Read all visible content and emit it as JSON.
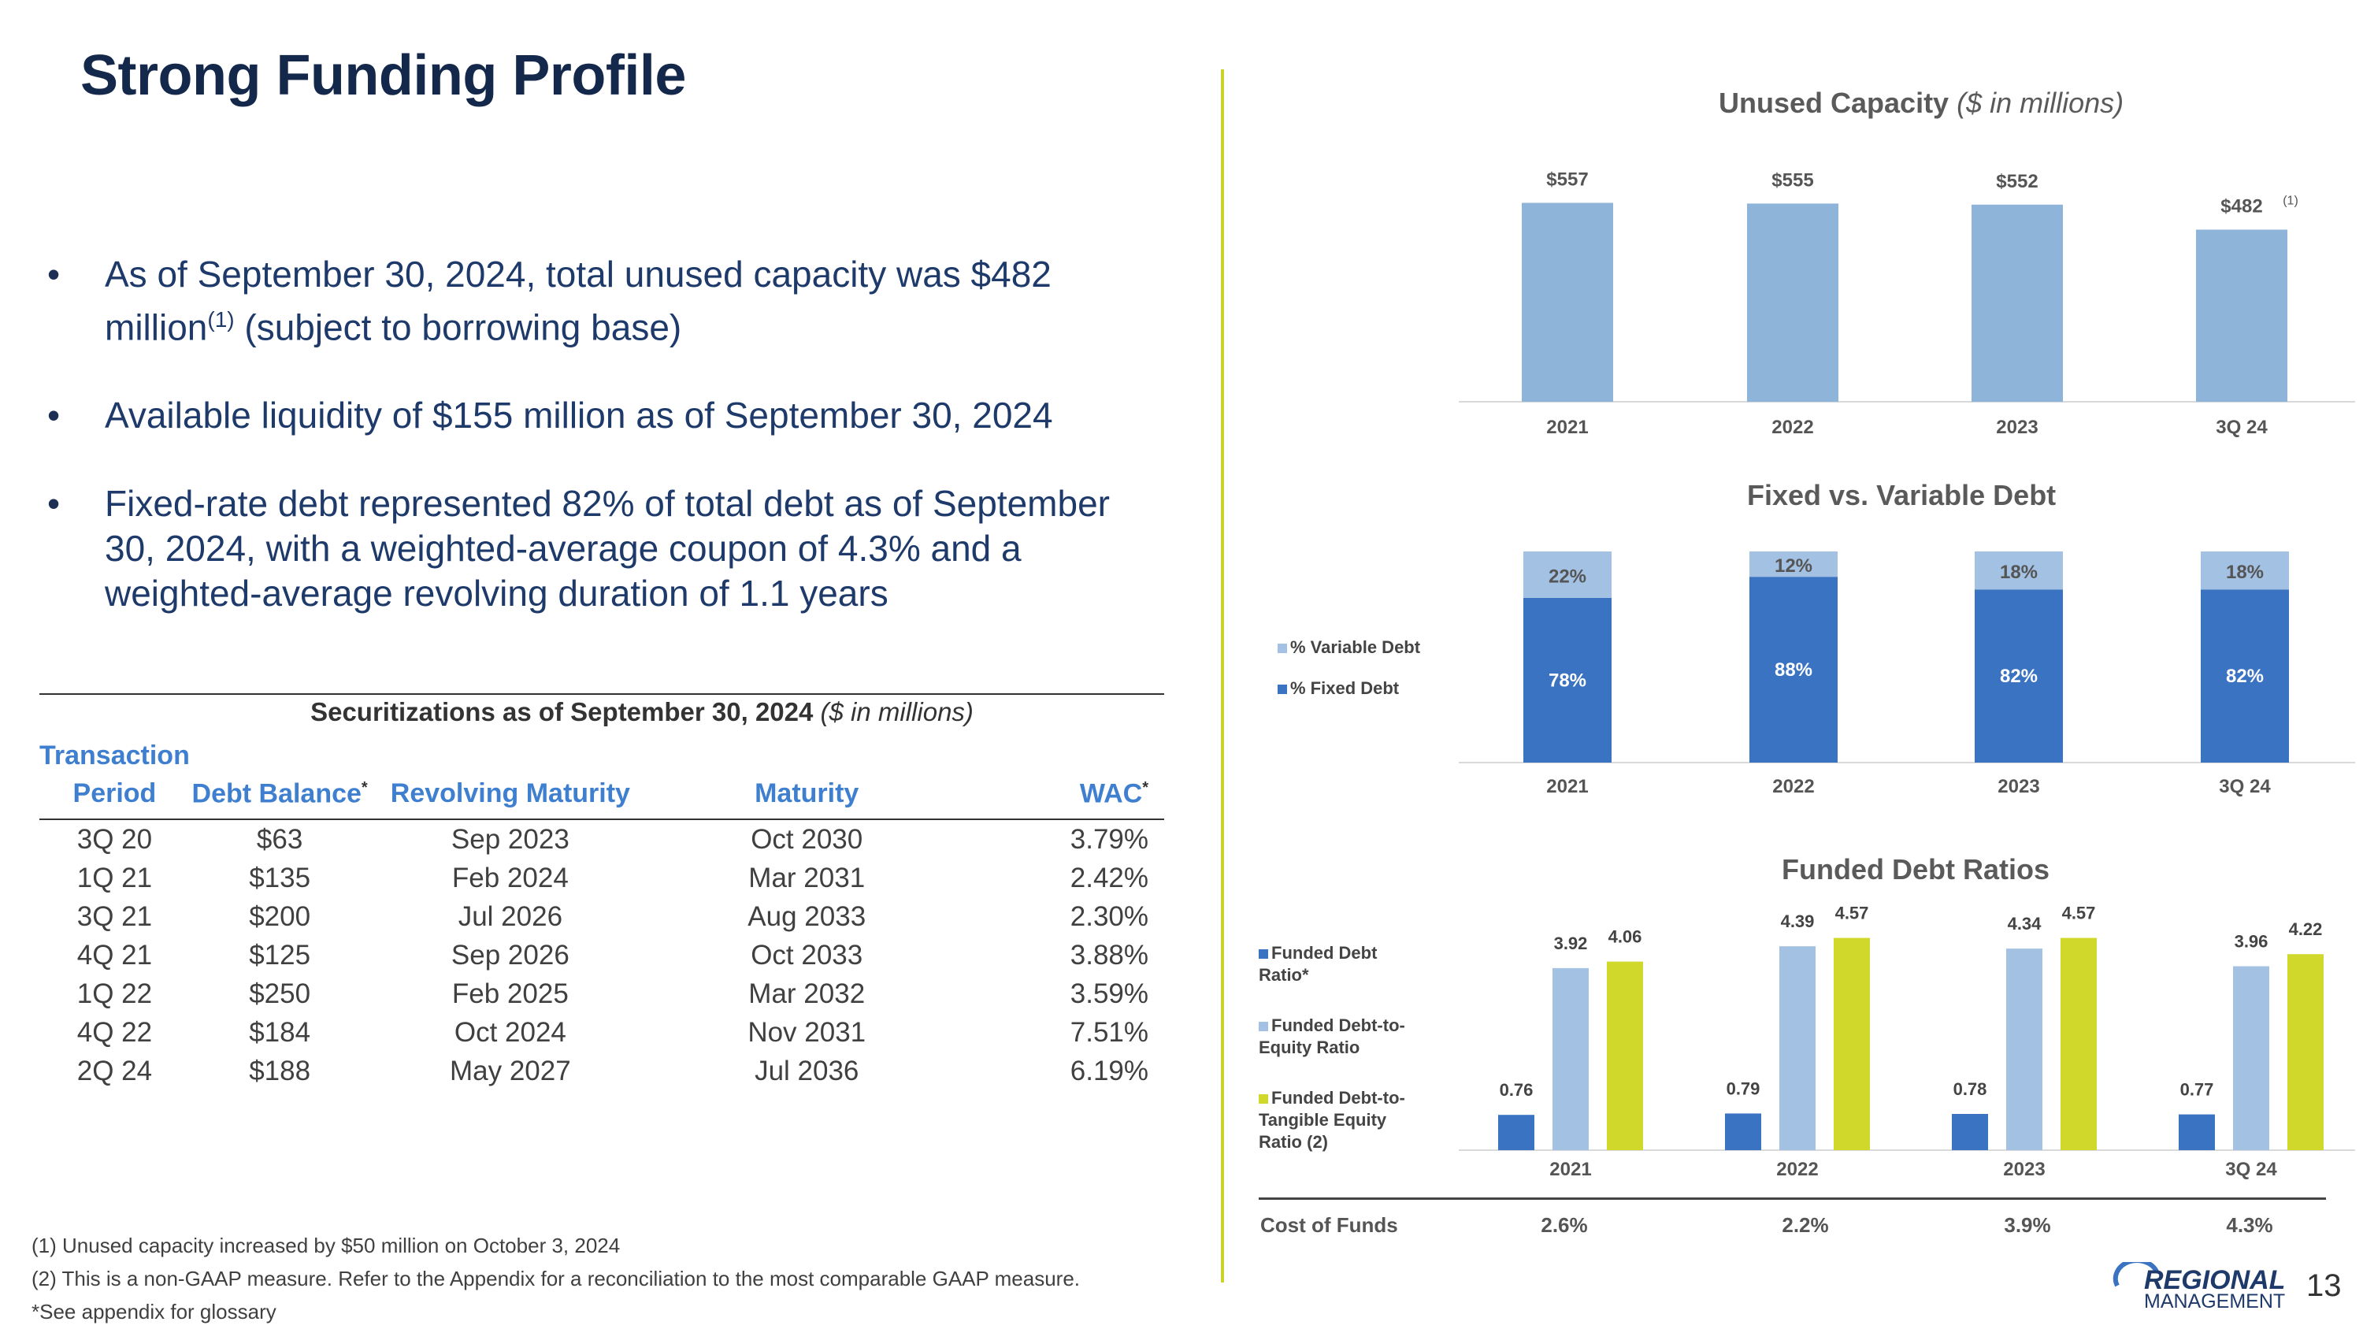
{
  "title": "Strong Funding Profile",
  "bullets": [
    {
      "text1": "As of September 30, 2024, total unused capacity was $482 million",
      "sup": "(1)",
      "text2": " (subject to borrowing base)"
    },
    {
      "text1": "Available liquidity of $155 million as of September 30, 2024",
      "sup": "",
      "text2": ""
    },
    {
      "text1": "Fixed-rate debt represented 82% of total debt as of September 30, 2024, with a weighted-average coupon of 4.3% and a weighted-average revolving duration of 1.1 years",
      "sup": "",
      "text2": ""
    }
  ],
  "securitizations": {
    "caption_bold": "Securitizations as of September 30, 2024",
    "caption_italic": "($ in millions)",
    "headers": {
      "period_line1": "Transaction",
      "period_line2": "Period",
      "debt": "Debt Balance",
      "debt_sup": "*",
      "revolving": "Revolving Maturity",
      "maturity": "Maturity",
      "wac": "WAC",
      "wac_sup": "*"
    },
    "rows": [
      [
        "3Q 20",
        "$63",
        "Sep 2023",
        "Oct 2030",
        "3.79%"
      ],
      [
        "1Q 21",
        "$135",
        "Feb 2024",
        "Mar 2031",
        "2.42%"
      ],
      [
        "3Q 21",
        "$200",
        "Jul 2026",
        "Aug 2033",
        "2.30%"
      ],
      [
        "4Q 21",
        "$125",
        "Sep 2026",
        "Oct 2033",
        "3.88%"
      ],
      [
        "1Q 22",
        "$250",
        "Feb 2025",
        "Mar 2032",
        "3.59%"
      ],
      [
        "4Q 22",
        "$184",
        "Oct 2024",
        "Nov 2031",
        "7.51%"
      ],
      [
        "2Q 24",
        "$188",
        "May 2027",
        "Jul 2036",
        "6.19%"
      ]
    ]
  },
  "footnotes": [
    "(1) Unused capacity increased by $50 million on October 3, 2024",
    "(2) This is a non-GAAP measure. Refer to the Appendix for a reconciliation to the most comparable GAAP measure.",
    "*See appendix for glossary"
  ],
  "colors": {
    "light_blue": "#8eb4d9",
    "mid_blue": "#a3c1e3",
    "dark_blue": "#3a73c2",
    "lime": "#cfd82b"
  },
  "chart_data": [
    {
      "type": "bar",
      "title": "Unused Capacity",
      "subtitle": "($ in millions)",
      "categories": [
        "2021",
        "2022",
        "2023",
        "3Q 24"
      ],
      "values": [
        557,
        555,
        552,
        482
      ],
      "labels": [
        "$557",
        "$555",
        "$552",
        "$482"
      ],
      "label_sup": [
        "",
        "",
        "",
        "(1)"
      ],
      "ylim": [
        0,
        600
      ]
    },
    {
      "type": "bar",
      "stacked": true,
      "title": "Fixed vs. Variable Debt",
      "categories": [
        "2021",
        "2022",
        "2023",
        "3Q 24"
      ],
      "series": [
        {
          "name": "% Fixed Debt",
          "values": [
            78,
            88,
            82,
            82
          ],
          "labels": [
            "78%",
            "88%",
            "82%",
            "82%"
          ]
        },
        {
          "name": "% Variable Debt",
          "values": [
            22,
            12,
            18,
            18
          ],
          "labels": [
            "22%",
            "12%",
            "18%",
            "18%"
          ]
        }
      ],
      "ylim": [
        0,
        100
      ]
    },
    {
      "type": "bar",
      "title": "Funded Debt Ratios",
      "categories": [
        "2021",
        "2022",
        "2023",
        "3Q 24"
      ],
      "series": [
        {
          "name": "Funded Debt Ratio*",
          "values": [
            0.76,
            0.79,
            0.78,
            0.77
          ]
        },
        {
          "name": "Funded Debt-to-Equity Ratio",
          "values": [
            3.92,
            4.39,
            4.34,
            3.96
          ]
        },
        {
          "name": "Funded Debt-to-Tangible Equity Ratio (2)",
          "values": [
            4.06,
            4.57,
            4.57,
            4.22
          ]
        }
      ],
      "ylim": [
        0,
        4.8
      ]
    }
  ],
  "cost_of_funds": {
    "label": "Cost of Funds",
    "values": [
      "2.6%",
      "2.2%",
      "3.9%",
      "4.3%"
    ]
  },
  "logo": {
    "line1": "REGIONAL",
    "line2": "MANAGEMENT"
  },
  "page_number": "13"
}
